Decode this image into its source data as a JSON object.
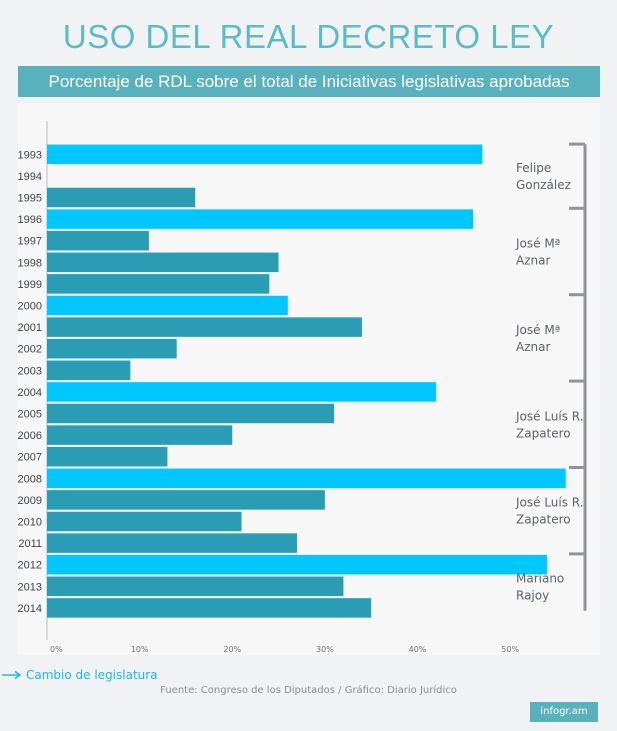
{
  "header": {
    "title": "USO DEL REAL DECRETO LEY",
    "subtitle": "Porcentaje de RDL sobre el total de Iniciativas legislativas aprobadas"
  },
  "legend": {
    "label": "Cambio de legislatura"
  },
  "source": "Fuente: Congreso de los Diputados / Gráfico: Diario Jurídico",
  "logo": "infogr.am",
  "colors": {
    "highlight": "#00c8ff",
    "regular": "#2a9db5",
    "accent": "#58b1bd",
    "bracket": "#8f9499"
  },
  "chart_data": {
    "type": "bar",
    "orientation": "horizontal",
    "categories": [
      "1993",
      "1994",
      "1995",
      "1996",
      "1997",
      "1998",
      "1999",
      "2000",
      "2001",
      "2002",
      "2003",
      "2004",
      "2005",
      "2006",
      "2007",
      "2008",
      "2009",
      "2010",
      "2011",
      "2012",
      "2013",
      "2014"
    ],
    "values": [
      47,
      0,
      16,
      46,
      11,
      25,
      24,
      26,
      34,
      14,
      9,
      42,
      31,
      20,
      13,
      56,
      30,
      21,
      27,
      54,
      32,
      35
    ],
    "highlighted": [
      "1993",
      "1996",
      "2000",
      "2004",
      "2008",
      "2012"
    ],
    "xlim": [
      0,
      57
    ],
    "xticks": [
      0,
      10,
      20,
      30,
      40,
      50
    ],
    "xtick_labels": [
      "0%",
      "10%",
      "20%",
      "30%",
      "40%",
      "50%"
    ],
    "legislaturas": [
      {
        "label": "Felipe González",
        "start": "1993",
        "end": "1995"
      },
      {
        "label": "José Mª Aznar",
        "start": "1996",
        "end": "1999"
      },
      {
        "label": "José Mª Aznar",
        "start": "2000",
        "end": "2003"
      },
      {
        "label": "José Luís R. Zapatero",
        "start": "2004",
        "end": "2007"
      },
      {
        "label": "José Luís R. Zapatero",
        "start": "2008",
        "end": "2011"
      },
      {
        "label": "Mariano Rajoy",
        "start": "2012",
        "end": "2014"
      }
    ]
  }
}
